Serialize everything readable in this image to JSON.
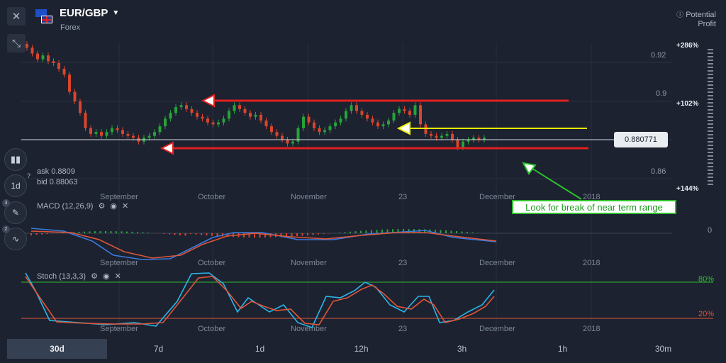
{
  "header": {
    "pair": "EUR/GBP",
    "category": "Forex",
    "potential_profit_line1": "Potential",
    "potential_profit_line2": "Profit"
  },
  "quote": {
    "ask_label": "ask",
    "ask_value": "0.8809",
    "bid_label": "bid",
    "bid_value": "0.88063",
    "current_price": "0.880771"
  },
  "price_axis": {
    "ticks": [
      "0.92",
      "0.9",
      "0.86"
    ]
  },
  "profit_scale": {
    "top": "+286%",
    "mid": "+102%",
    "bottom": "+144%"
  },
  "time_axis": {
    "labels": [
      "September",
      "October",
      "November",
      "23",
      "December",
      "2018"
    ]
  },
  "side_buttons": {
    "timeframe_label": "1d",
    "macd_badge": "3",
    "stoch_badge": "2"
  },
  "indicators": {
    "macd_label": "MACD (12,26,9)",
    "macd_zero": "0",
    "stoch_label": "Stoch (13,3,3)",
    "stoch_upper": "80%",
    "stoch_lower": "20%"
  },
  "annotation": {
    "text": "Look for break of near term range"
  },
  "timeframes": [
    "30d",
    "7d",
    "1d",
    "12h",
    "3h",
    "1h",
    "30m"
  ],
  "active_timeframe": "30d",
  "colors": {
    "background": "#1c2230",
    "bull": "#27a33a",
    "bear": "#d9452c",
    "resistance": "#e02020",
    "support_yellow": "#f0f000",
    "macd_line": "#3a7be0",
    "signal_line": "#e0553a",
    "stoch_k": "#2bb6e8",
    "stoch_d": "#e0553a",
    "stoch_80": "#2fbf2f",
    "stoch_20": "#e0553a"
  }
}
